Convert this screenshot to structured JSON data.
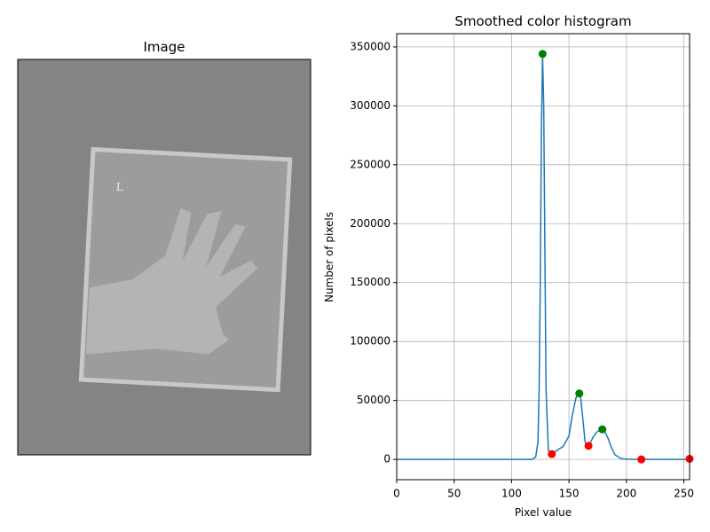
{
  "chart_data": [
    {
      "type": "image",
      "title": "Image"
    },
    {
      "type": "line",
      "title": "Smoothed color histogram",
      "x_label": "Pixel value",
      "y_label": "Number of pixels",
      "xlim": [
        0,
        255
      ],
      "ylim": [
        -17200,
        361200
      ],
      "xticks": [
        0,
        50,
        100,
        150,
        200,
        250
      ],
      "yticks": [
        0,
        50000,
        100000,
        150000,
        200000,
        250000,
        300000,
        350000
      ],
      "grid": true,
      "series": [
        {
          "color": "#1f77b4",
          "marker": false,
          "x": [
            0,
            50,
            100,
            118,
            121,
            123,
            124,
            125,
            126,
            127,
            128,
            129,
            130,
            132,
            134,
            136,
            140,
            145,
            150,
            153,
            156,
            158,
            159,
            160,
            162,
            164,
            166,
            168,
            171,
            174,
            177,
            179,
            181,
            184,
            187,
            190,
            195,
            200,
            210,
            255
          ],
          "values": [
            0,
            0,
            0,
            0,
            2000,
            15000,
            60000,
            150000,
            280000,
            344000,
            300000,
            180000,
            60000,
            8000,
            4000,
            5000,
            8000,
            11000,
            20000,
            38000,
            52000,
            56000,
            56000,
            54000,
            35000,
            15000,
            11000,
            13000,
            19000,
            23000,
            25000,
            25500,
            24000,
            18000,
            10000,
            4000,
            800,
            200,
            0,
            0
          ]
        },
        {
          "color": "#008000",
          "marker": true,
          "x": [
            127,
            159,
            179
          ],
          "values": [
            344000,
            56000,
            25500
          ]
        },
        {
          "color": "#ff0000",
          "marker": true,
          "x": [
            135,
            167,
            213,
            255
          ],
          "values": [
            4500,
            11500,
            0,
            500
          ]
        }
      ]
    }
  ]
}
